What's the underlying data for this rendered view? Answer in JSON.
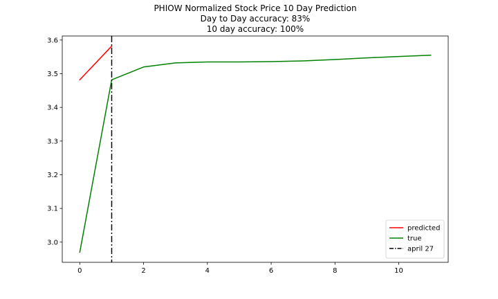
{
  "chart_data": {
    "type": "line",
    "title_lines": [
      "PHIOW Normalized Stock Price 10 Day Prediction",
      "Day to Day accuracy: 83%",
      "10 day accuracy: 100%"
    ],
    "xlabel": "",
    "ylabel": "",
    "xlim": [
      -0.55,
      11.55
    ],
    "ylim": [
      2.94,
      3.612
    ],
    "x_ticks": [
      0,
      2,
      4,
      6,
      8,
      10
    ],
    "y_ticks": [
      3.0,
      3.1,
      3.2,
      3.3,
      3.4,
      3.5,
      3.6
    ],
    "y_tick_labels": [
      "3.0",
      "3.1",
      "3.2",
      "3.3",
      "3.4",
      "3.5",
      "3.6"
    ],
    "grid": false,
    "legend_position": "lower-right",
    "series": [
      {
        "name": "predicted",
        "color": "#ff0000",
        "style": "solid",
        "x": [
          0,
          1
        ],
        "y": [
          3.482,
          3.582
        ]
      },
      {
        "name": "true",
        "color": "#008000",
        "style": "solid",
        "x": [
          0,
          1,
          2,
          3,
          4,
          5,
          6,
          7,
          8,
          9,
          10,
          11
        ],
        "y": [
          2.97,
          3.482,
          3.52,
          3.532,
          3.535,
          3.535,
          3.536,
          3.538,
          3.542,
          3.547,
          3.551,
          3.555
        ]
      }
    ],
    "vlines": [
      {
        "name": "april 27",
        "x": 1,
        "color": "#000000",
        "style": "dashdot"
      }
    ]
  }
}
